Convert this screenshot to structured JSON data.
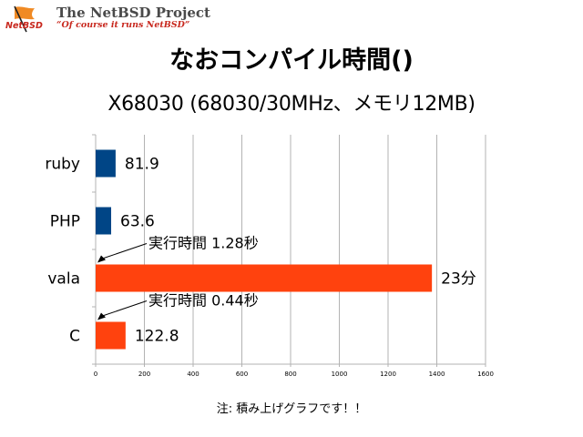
{
  "header": {
    "logo_text": "NetBSD",
    "project_name": "The NetBSD Project",
    "tagline": "“Of course it runs NetBSD”"
  },
  "title": "なおコンパイル時間()",
  "subtitle": "X68030 (68030/30MHz、メモリ12MB)",
  "footnote": "注: 積み上げグラフです！！",
  "colors": {
    "blue": "#004586",
    "orange": "#ff420e",
    "grid": "#b3b3b3",
    "logo_red": "#c8281e"
  },
  "chart_data": {
    "type": "bar",
    "orientation": "horizontal",
    "categories": [
      "ruby",
      "PHP",
      "vala",
      "C"
    ],
    "bars": [
      {
        "category": "ruby",
        "value": 81.9,
        "label": "81.9",
        "color": "#004586"
      },
      {
        "category": "PHP",
        "value": 63.6,
        "label": "63.6",
        "color": "#004586"
      },
      {
        "category": "vala",
        "value": 1380,
        "label": "23分",
        "color": "#ff420e"
      },
      {
        "category": "C",
        "value": 122.8,
        "label": "122.8",
        "color": "#ff420e"
      }
    ],
    "annotations": [
      {
        "category": "vala",
        "text": "実行時間 1.28秒"
      },
      {
        "category": "C",
        "text": "実行時間 0.44秒"
      }
    ],
    "xlim": [
      0,
      1600
    ],
    "xticks": [
      0,
      200,
      400,
      600,
      800,
      1000,
      1200,
      1400,
      1600
    ],
    "grid": true,
    "stacked": true,
    "title": "",
    "xlabel": "",
    "ylabel": ""
  }
}
